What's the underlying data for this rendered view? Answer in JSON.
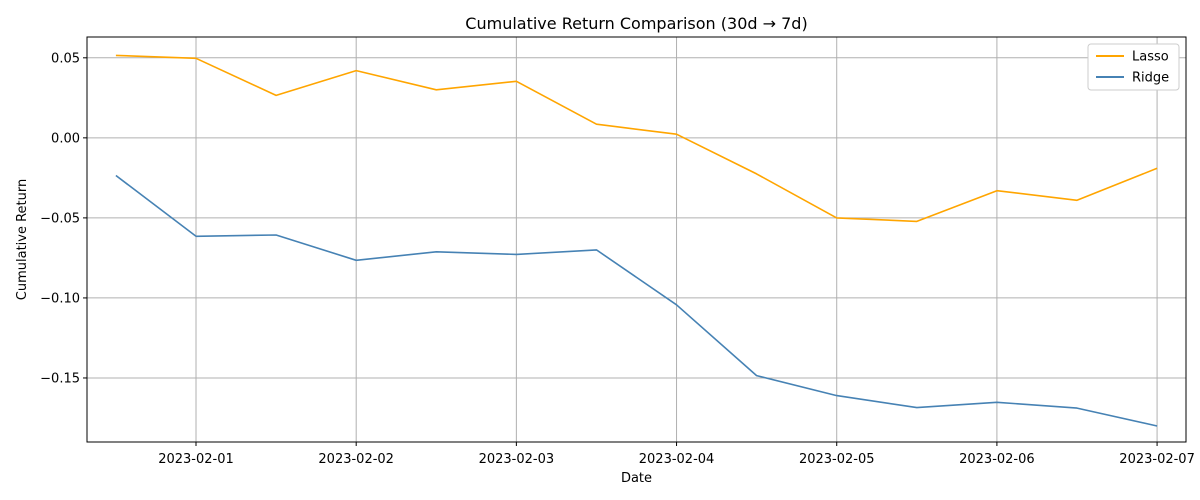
{
  "chart_data": {
    "type": "line",
    "title": "Cumulative Return Comparison (30d → 7d)",
    "xlabel": "Date",
    "ylabel": "Cumulative Return",
    "x": [
      "2023-01-31 12:00",
      "2023-02-01 00:00",
      "2023-02-01 12:00",
      "2023-02-02 00:00",
      "2023-02-02 12:00",
      "2023-02-03 00:00",
      "2023-02-03 12:00",
      "2023-02-04 00:00",
      "2023-02-04 12:00",
      "2023-02-05 00:00",
      "2023-02-05 12:00",
      "2023-02-06 00:00",
      "2023-02-06 12:00",
      "2023-02-07 00:00"
    ],
    "x_ticks": [
      "2023-02-01",
      "2023-02-02",
      "2023-02-03",
      "2023-02-04",
      "2023-02-05",
      "2023-02-06",
      "2023-02-07"
    ],
    "y_ticks": [
      "0.05",
      "0.00",
      "−0.05",
      "−0.10",
      "−0.15"
    ],
    "ylim": [
      -0.19,
      0.063
    ],
    "grid": true,
    "legend_position": "top-right",
    "series": [
      {
        "name": "Lasso",
        "color": "#FFA500",
        "values": [
          0.0515,
          0.0497,
          0.0265,
          0.042,
          0.03,
          0.0353,
          0.0085,
          0.0023,
          -0.0225,
          -0.05,
          -0.0522,
          -0.033,
          -0.039,
          -0.019
        ]
      },
      {
        "name": "Ridge",
        "color": "#4682B4",
        "values": [
          -0.0235,
          -0.0615,
          -0.0607,
          -0.0765,
          -0.0712,
          -0.0728,
          -0.07,
          -0.1043,
          -0.1485,
          -0.161,
          -0.1685,
          -0.1652,
          -0.1688,
          -0.18
        ]
      }
    ]
  }
}
